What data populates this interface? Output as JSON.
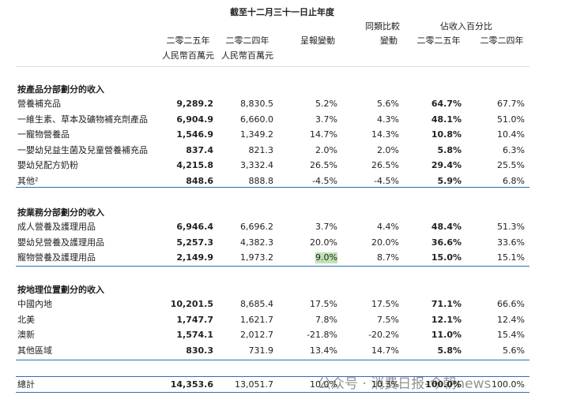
{
  "header": {
    "period": "截至十二月三十一日止年度",
    "comparable": "同類比較",
    "pct_of_revenue": "佔收入百分比",
    "columns": [
      "二零二五年",
      "二零二四年",
      "呈報變動",
      "變動",
      "二零二五年",
      "二零二四年"
    ],
    "units": [
      "人民幣百萬元",
      "人民幣百萬元"
    ]
  },
  "sections": [
    {
      "title": "按產品分部劃分的收入",
      "rows": [
        [
          "營養補充品",
          "9,289.2",
          "8,830.5",
          "5.2%",
          "5.6%",
          "64.7%",
          "67.7%"
        ],
        [
          "一維生素、草本及礦物補充劑產品",
          "6,904.9",
          "6,660.0",
          "3.7%",
          "4.3%",
          "48.1%",
          "51.0%"
        ],
        [
          "一寵物營養品",
          "1,546.9",
          "1,349.2",
          "14.7%",
          "14.3%",
          "10.8%",
          "10.4%"
        ],
        [
          "一嬰幼兒益生菌及兒童營養補充品",
          "837.4",
          "821.3",
          "2.0%",
          "2.0%",
          "5.8%",
          "6.3%"
        ],
        [
          "嬰幼兒配方奶粉",
          "4,215.8",
          "3,332.4",
          "26.5%",
          "26.5%",
          "29.4%",
          "25.5%"
        ],
        [
          "其他²",
          "848.6",
          "888.8",
          "-4.5%",
          "-4.5%",
          "5.9%",
          "6.8%"
        ]
      ]
    },
    {
      "title": "按業務分部劃分的收入",
      "rows": [
        [
          "成人營養及護理用品",
          "6,946.4",
          "6,696.2",
          "3.7%",
          "4.4%",
          "48.4%",
          "51.3%"
        ],
        [
          "嬰幼兒營養及護理用品",
          "5,257.3",
          "4,382.3",
          "20.0%",
          "20.0%",
          "36.6%",
          "33.6%"
        ],
        [
          "寵物營養及護理用品",
          "2,149.9",
          "1,973.2",
          "9.0%",
          "8.7%",
          "15.0%",
          "15.1%"
        ]
      ]
    },
    {
      "title": "按地理位置劃分的收入",
      "rows": [
        [
          "中國內地",
          "10,201.5",
          "8,685.4",
          "17.5%",
          "17.5%",
          "71.1%",
          "66.6%"
        ],
        [
          "北美",
          "1,747.7",
          "1,621.7",
          "7.8%",
          "7.5%",
          "12.1%",
          "12.4%"
        ],
        [
          "澳新",
          "1,574.1",
          "2,012.7",
          "-21.8%",
          "-20.2%",
          "11.0%",
          "15.4%"
        ],
        [
          "其他區域",
          "830.3",
          "731.9",
          "13.4%",
          "14.7%",
          "5.8%",
          "5.6%"
        ]
      ]
    }
  ],
  "total": [
    "總計",
    "14,353.6",
    "13,051.7",
    "10.0%",
    "10.3%",
    "100.0%",
    "100.0%"
  ],
  "watermark": "公众号 · 消费日报-今朝news"
}
